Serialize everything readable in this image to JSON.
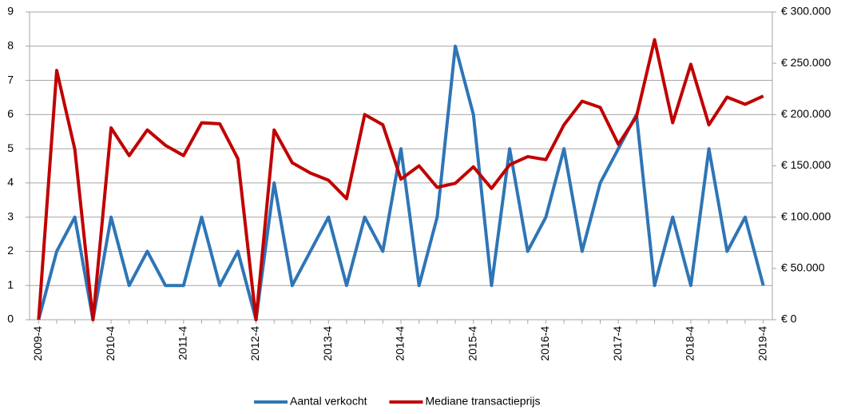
{
  "chart_data": {
    "type": "line",
    "categories": [
      "2009-4",
      null,
      null,
      null,
      "2010-4",
      null,
      null,
      null,
      "2011-4",
      null,
      null,
      null,
      "2012-4",
      null,
      null,
      null,
      "2013-4",
      null,
      null,
      null,
      "2014-4",
      null,
      null,
      null,
      "2015-4",
      null,
      null,
      null,
      "2016-4",
      null,
      null,
      null,
      "2017-4",
      null,
      null,
      null,
      "2018-4",
      null,
      null,
      null,
      "2019-4"
    ],
    "series": [
      {
        "name": "Aantal verkocht",
        "color": "#2e75b6",
        "values": [
          0,
          2,
          3,
          0,
          3,
          1,
          2,
          1,
          1,
          3,
          1,
          2,
          0,
          4,
          1,
          2,
          3,
          1,
          3,
          2,
          5,
          1,
          3,
          8,
          6,
          1,
          5,
          2,
          3,
          5,
          2,
          4,
          5,
          6,
          1,
          3,
          1,
          5,
          2,
          3,
          1
        ]
      },
      {
        "name": "Mediane transactieprijs",
        "color": "#c00000",
        "axis": "y2",
        "values": [
          0,
          243000,
          166000,
          0,
          187000,
          160000,
          185000,
          170000,
          160000,
          192000,
          191000,
          157000,
          0,
          185000,
          153000,
          143000,
          136000,
          118000,
          200000,
          190000,
          137000,
          150000,
          129000,
          133000,
          149000,
          128000,
          151000,
          159000,
          156000,
          190000,
          213000,
          207000,
          171000,
          198000,
          273000,
          192000,
          249000,
          190000,
          217000,
          210000,
          218000
        ]
      }
    ],
    "ylim": [
      0,
      9
    ],
    "yticks": [
      0,
      1,
      2,
      3,
      4,
      5,
      6,
      7,
      8,
      9
    ],
    "y2lim": [
      0,
      300000
    ],
    "y2ticks": [
      {
        "value": 0,
        "label": "€ 0"
      },
      {
        "value": 50000,
        "label": "€ 50.000"
      },
      {
        "value": 100000,
        "label": "€ 100.000"
      },
      {
        "value": 150000,
        "label": "€ 150.000"
      },
      {
        "value": 200000,
        "label": "€ 200.000"
      },
      {
        "value": 250000,
        "label": "€ 250.000"
      },
      {
        "value": 300000,
        "label": "€ 300.000"
      }
    ],
    "grid": true,
    "legend": "bottom"
  }
}
